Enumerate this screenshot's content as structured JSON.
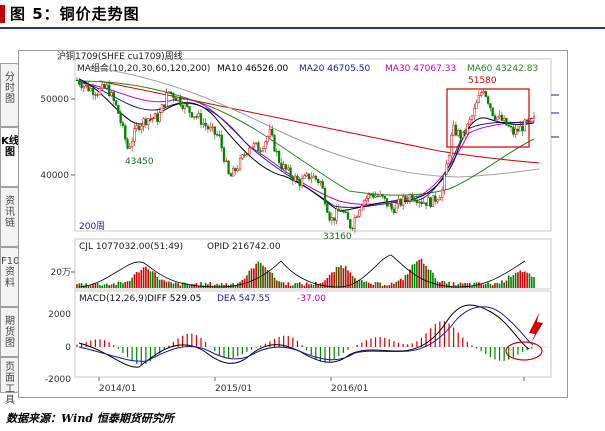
{
  "figure": {
    "title": "图 5：铜价走势图",
    "source": "数据来源：Wind 恒泰期货研究所"
  },
  "side_tabs": [
    {
      "label": "分时图",
      "active": false
    },
    {
      "label": "K线图",
      "active": true
    },
    {
      "label": "资讯链",
      "active": false
    },
    {
      "label": "F10资料",
      "active": false
    },
    {
      "label": "期货图",
      "active": false
    },
    {
      "label": "页面工具",
      "active": false
    }
  ],
  "main_panel": {
    "symbol": "沪铜1709(SHFE cu1709)周线",
    "ma_group": "MA组合(10,20,30,60,120,200)",
    "ma10": "MA10 46526.00",
    "ma20": "MA20 46705.50",
    "ma30": "MA30 47067.33",
    "ma60": "MA60 43242.83",
    "ma200_label": "200周",
    "y_ticks": [
      "50000",
      "40000"
    ],
    "annotations": [
      "43450",
      "33160",
      "51580"
    ]
  },
  "volume_panel": {
    "cjl": "CJL 1077032.00(51:49)",
    "opid": "OPID 216742.00",
    "y_tick": "20万"
  },
  "macd_panel": {
    "label": "MACD(12,26,9)",
    "diff": "DIFF 529.05",
    "dea": "DEA 547.55",
    "macd": "-37.00",
    "y_ticks": [
      "2000",
      "0",
      "-2000"
    ]
  },
  "x_ticks": [
    "2014/01",
    "2015/01",
    "2016/01"
  ],
  "colors": {
    "up": "#d60000",
    "down": "#008000",
    "ma10": "#000000",
    "ma20": "#1a1aa6",
    "ma30": "#c000c0",
    "ma60": "#1f8a1f",
    "ma120": "#a0a0a0",
    "ma200": "#d00000",
    "highlight": "#d00000"
  },
  "chart_data": [
    {
      "type": "candlestick",
      "title": "沪铜1709(SHFE cu1709)周线",
      "x_range": [
        "2013/08",
        "2017/07"
      ],
      "ylim": [
        30000,
        55000
      ],
      "close_series": [
        {
          "date": "2013/08",
          "value": 52500
        },
        {
          "date": "2013/10",
          "value": 51500
        },
        {
          "date": "2013/12",
          "value": 51000
        },
        {
          "date": "2014/01",
          "value": 51500
        },
        {
          "date": "2014/02",
          "value": 48500
        },
        {
          "date": "2014/03",
          "value": 43450
        },
        {
          "date": "2014/04",
          "value": 46500
        },
        {
          "date": "2014/05",
          "value": 47500
        },
        {
          "date": "2014/06",
          "value": 47500
        },
        {
          "date": "2014/07",
          "value": 51000
        },
        {
          "date": "2014/08",
          "value": 50000
        },
        {
          "date": "2014/09",
          "value": 48500
        },
        {
          "date": "2014/10",
          "value": 47500
        },
        {
          "date": "2014/11",
          "value": 46000
        },
        {
          "date": "2014/12",
          "value": 45000
        },
        {
          "date": "2015/01",
          "value": 39500
        },
        {
          "date": "2015/02",
          "value": 41500
        },
        {
          "date": "2015/03",
          "value": 44000
        },
        {
          "date": "2015/04",
          "value": 43500
        },
        {
          "date": "2015/05",
          "value": 45500
        },
        {
          "date": "2015/06",
          "value": 41500
        },
        {
          "date": "2015/07",
          "value": 40000
        },
        {
          "date": "2015/08",
          "value": 39000
        },
        {
          "date": "2015/09",
          "value": 40000
        },
        {
          "date": "2015/10",
          "value": 39000
        },
        {
          "date": "2015/11",
          "value": 34000
        },
        {
          "date": "2015/12",
          "value": 35500
        },
        {
          "date": "2016/01",
          "value": 33160
        },
        {
          "date": "2016/02",
          "value": 36500
        },
        {
          "date": "2016/03",
          "value": 37500
        },
        {
          "date": "2016/04",
          "value": 37000
        },
        {
          "date": "2016/05",
          "value": 35500
        },
        {
          "date": "2016/06",
          "value": 36500
        },
        {
          "date": "2016/07",
          "value": 37500
        },
        {
          "date": "2016/08",
          "value": 36500
        },
        {
          "date": "2016/09",
          "value": 36500
        },
        {
          "date": "2016/10",
          "value": 38000
        },
        {
          "date": "2016/11",
          "value": 46000
        },
        {
          "date": "2016/12",
          "value": 45000
        },
        {
          "date": "2017/01",
          "value": 48000
        },
        {
          "date": "2017/02",
          "value": 51580
        },
        {
          "date": "2017/03",
          "value": 48000
        },
        {
          "date": "2017/04",
          "value": 47000
        },
        {
          "date": "2017/05",
          "value": 45500
        },
        {
          "date": "2017/06",
          "value": 46500
        },
        {
          "date": "2017/07",
          "value": 47200
        }
      ],
      "moving_averages": {
        "MA10": 46526.0,
        "MA20": 46705.5,
        "MA30": 47067.33,
        "MA60": 43242.83
      }
    },
    {
      "type": "bar",
      "title": "CJL 1077032.00(51:49)",
      "ylabel": "20万",
      "note": "weekly traded volume; spikes around 2014/03, 2015/08, 2016/03 and 2016/11"
    },
    {
      "type": "line",
      "title": "MACD(12,26,9)",
      "series": [
        {
          "name": "DIFF",
          "last": 529.05
        },
        {
          "name": "DEA",
          "last": 547.55
        },
        {
          "name": "MACD",
          "last": -37.0
        }
      ],
      "ylim": [
        -2000,
        2500
      ]
    }
  ]
}
